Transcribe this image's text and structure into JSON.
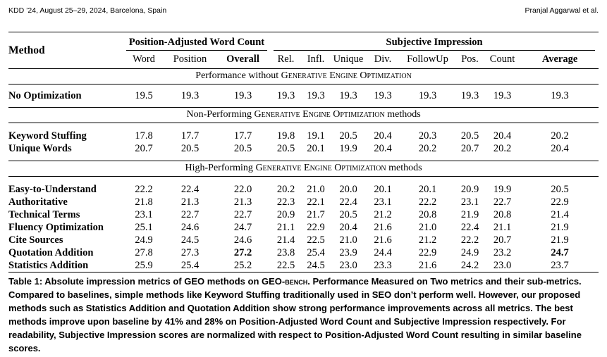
{
  "running_head": {
    "left": "KDD ’24, August 25–29, 2024, Barcelona, Spain",
    "right": "Pranjal Aggarwal et al."
  },
  "table": {
    "method_header": "Method",
    "group_pawc": "Position-Adjusted Word Count",
    "group_si": "Subjective Impression",
    "columns": [
      "Word",
      "Position",
      "Overall",
      "Rel.",
      "Infl.",
      "Unique",
      "Div.",
      "FollowUp",
      "Pos.",
      "Count",
      "Average"
    ],
    "sections": [
      {
        "title_prefix": "Performance without ",
        "title_sc": "Generative Engine Optimization",
        "title_suffix": "",
        "rows": [
          {
            "method": "No Optimization",
            "values": [
              "19.5",
              "19.3",
              "19.3",
              "19.3",
              "19.3",
              "19.3",
              "19.3",
              "19.3",
              "19.3",
              "19.3",
              "19.3"
            ]
          }
        ]
      },
      {
        "title_prefix": "Non-Performing ",
        "title_sc": "Generative Engine Optimization",
        "title_suffix": " methods",
        "rows": [
          {
            "method": "Keyword Stuffing",
            "values": [
              "17.8",
              "17.7",
              "17.7",
              "19.8",
              "19.1",
              "20.5",
              "20.4",
              "20.3",
              "20.5",
              "20.4",
              "20.2"
            ]
          },
          {
            "method": "Unique Words",
            "values": [
              "20.7",
              "20.5",
              "20.5",
              "20.5",
              "20.1",
              "19.9",
              "20.4",
              "20.2",
              "20.7",
              "20.2",
              "20.4"
            ]
          }
        ]
      },
      {
        "title_prefix": "High-Performing ",
        "title_sc": "Generative Engine Optimization",
        "title_suffix": " methods",
        "rows": [
          {
            "method": "Easy-to-Understand",
            "values": [
              "22.2",
              "22.4",
              "22.0",
              "20.2",
              "21.0",
              "20.0",
              "20.1",
              "20.1",
              "20.9",
              "19.9",
              "20.5"
            ]
          },
          {
            "method": "Authoritative",
            "values": [
              "21.8",
              "21.3",
              "21.3",
              "22.3",
              "22.1",
              "22.4",
              "23.1",
              "22.2",
              "23.1",
              "22.7",
              "22.9"
            ]
          },
          {
            "method": "Technical Terms",
            "values": [
              "23.1",
              "22.7",
              "22.7",
              "20.9",
              "21.7",
              "20.5",
              "21.2",
              "20.8",
              "21.9",
              "20.8",
              "21.4"
            ]
          },
          {
            "method": "Fluency Optimization",
            "values": [
              "25.1",
              "24.6",
              "24.7",
              "21.1",
              "22.9",
              "20.4",
              "21.6",
              "21.0",
              "22.4",
              "21.1",
              "21.9"
            ]
          },
          {
            "method": "Cite Sources",
            "values": [
              "24.9",
              "24.5",
              "24.6",
              "21.4",
              "22.5",
              "21.0",
              "21.6",
              "21.2",
              "22.2",
              "20.7",
              "21.9"
            ]
          },
          {
            "method": "Quotation Addition",
            "values": [
              "27.8",
              "27.3",
              "27.2",
              "23.8",
              "25.4",
              "23.9",
              "24.4",
              "22.9",
              "24.9",
              "23.2",
              "24.7"
            ],
            "bold_cols": [
              2,
              10
            ]
          },
          {
            "method": "Statistics Addition",
            "values": [
              "25.9",
              "25.4",
              "25.2",
              "22.5",
              "24.5",
              "23.0",
              "23.3",
              "21.6",
              "24.2",
              "23.0",
              "23.7"
            ]
          }
        ]
      }
    ]
  },
  "caption": {
    "part1": "Table 1: Absolute impression metrics of GEO methods on GEO-",
    "bench": "bench",
    "part2": ". Performance Measured on Two metrics and their sub-metrics. Compared to baselines, simple methods like Keyword Stuffing traditionally used in SEO don’t perform well. However, our proposed methods such as Statistics Addition and Quotation Addition show strong performance improvements across all metrics. The best methods improve upon baseline by 41% and 28% on Position-Adjusted Word Count and Subjective Impression respectively. For readability, Subjective Impression scores are normalized with respect to Position-Adjusted Word Count resulting in similar baseline scores."
  }
}
